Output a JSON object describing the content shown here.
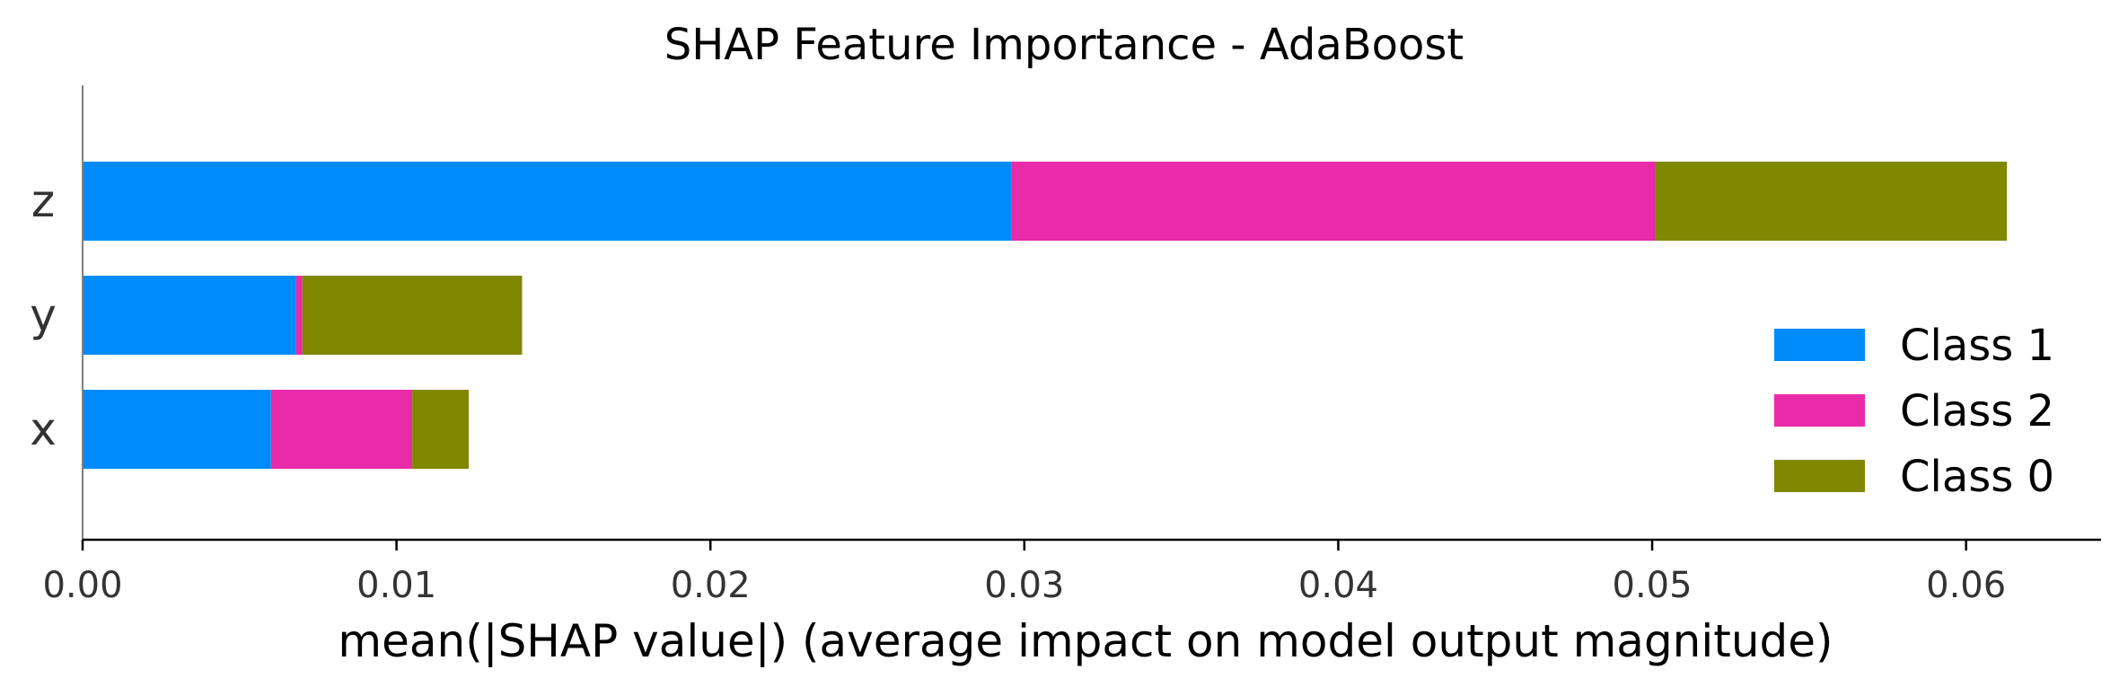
{
  "chart_data": {
    "type": "bar",
    "orientation": "horizontal",
    "stacked": true,
    "title": "SHAP Feature Importance - AdaBoost",
    "xlabel": "mean(|SHAP value|) (average impact on model output magnitude)",
    "ylabel": "",
    "categories": [
      "z",
      "y",
      "x"
    ],
    "series": [
      {
        "name": "Class 1",
        "color": "#008bfb",
        "values": [
          0.0296,
          0.0068,
          0.006
        ]
      },
      {
        "name": "Class 2",
        "color": "#e92aa9",
        "values": [
          0.0205,
          0.0002,
          0.0045
        ]
      },
      {
        "name": "Class 0",
        "color": "#808800",
        "values": [
          0.0112,
          0.007,
          0.0018
        ]
      }
    ],
    "xlim": [
      0,
      0.0643
    ],
    "xticks": [
      0.0,
      0.01,
      0.02,
      0.03,
      0.04,
      0.05,
      0.06
    ],
    "xtick_labels": [
      "0.00",
      "0.01",
      "0.02",
      "0.03",
      "0.04",
      "0.05",
      "0.06"
    ],
    "grid": false,
    "legend_position": "bottom-right",
    "legend_order": [
      "Class 1",
      "Class 2",
      "Class 0"
    ]
  }
}
